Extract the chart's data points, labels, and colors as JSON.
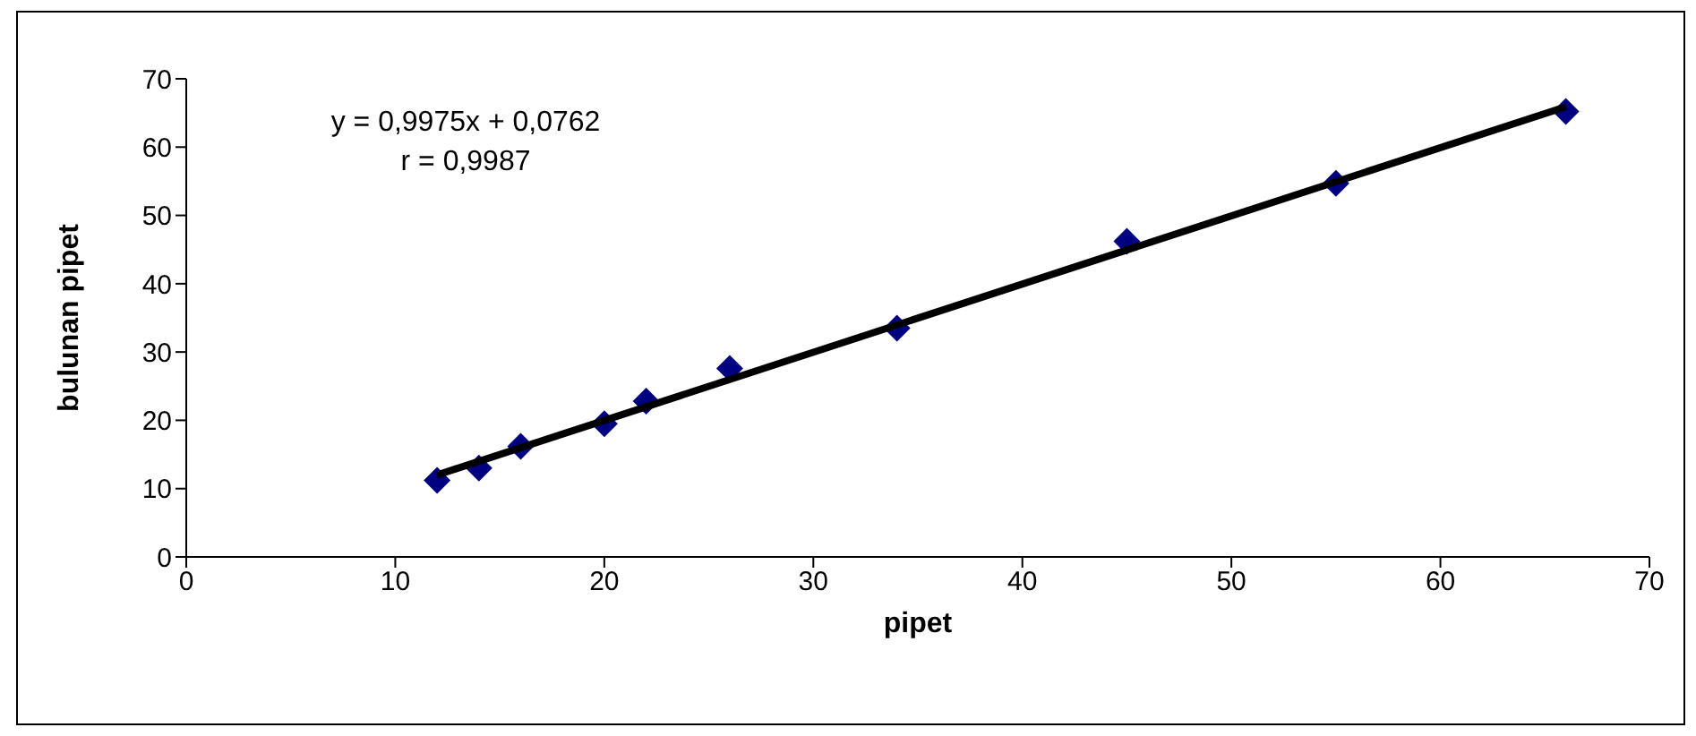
{
  "chart_data": {
    "type": "scatter",
    "xlabel": "pipet",
    "ylabel": "bulunan pipet",
    "annotations": [
      "y = 0,9975x + 0,0762",
      "r = 0,9987"
    ],
    "xlim": [
      0,
      70
    ],
    "xticks": [
      0,
      10,
      20,
      30,
      40,
      50,
      60,
      70
    ],
    "ylim": [
      0,
      70
    ],
    "yticks": [
      0,
      10,
      20,
      30,
      40,
      50,
      60,
      70
    ],
    "grid": false,
    "legend": false,
    "marker": "diamond",
    "series": [
      {
        "color": "#000080",
        "x": [
          12,
          14,
          16,
          20,
          22,
          26,
          34,
          45,
          55,
          66
        ],
        "values": [
          11.2,
          13,
          16.2,
          19.5,
          22.8,
          27.6,
          33.5,
          46.2,
          54.7,
          65.2
        ]
      },
      {
        "type": "line",
        "color": "#000000",
        "marker": "none",
        "x": [
          12,
          66
        ],
        "values": [
          12,
          65.9
        ]
      }
    ]
  }
}
